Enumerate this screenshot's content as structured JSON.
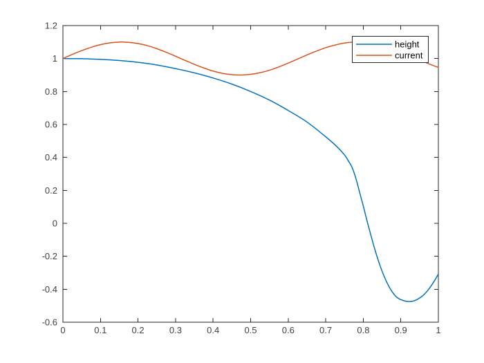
{
  "figure": {
    "background": "#ffffff",
    "axis_color": "#262626",
    "tick_label_color": "#404040",
    "legend_text_color": "#000000"
  },
  "chart_data": {
    "type": "line",
    "title": "",
    "xlabel": "",
    "ylabel": "",
    "xlim": [
      0,
      1
    ],
    "ylim": [
      -0.6,
      1.2
    ],
    "grid": false,
    "box": true,
    "xticks": [
      0,
      0.1,
      0.2,
      0.3,
      0.4,
      0.5,
      0.6,
      0.7,
      0.8,
      0.9,
      1
    ],
    "xtick_labels": [
      "0",
      "0.1",
      "0.2",
      "0.3",
      "0.4",
      "0.5",
      "0.6",
      "0.7",
      "0.8",
      "0.9",
      "1"
    ],
    "yticks": [
      -0.6,
      -0.4,
      -0.2,
      0,
      0.2,
      0.4,
      0.6,
      0.8,
      1,
      1.2
    ],
    "ytick_labels": [
      "-0.6",
      "-0.4",
      "-0.2",
      "0",
      "0.2",
      "0.4",
      "0.6",
      "0.8",
      "1",
      "1.2"
    ],
    "legend": {
      "position": "northeast",
      "background": "#ffffff",
      "border_color": "#262626",
      "entries": [
        "height",
        "current"
      ]
    },
    "series": [
      {
        "name": "height",
        "color": "#0072BD",
        "points": [
          [
            0,
            1.0
          ],
          [
            0.05,
            0.999
          ],
          [
            0.1,
            0.995
          ],
          [
            0.15,
            0.988
          ],
          [
            0.2,
            0.977
          ],
          [
            0.25,
            0.961
          ],
          [
            0.3,
            0.939
          ],
          [
            0.35,
            0.913
          ],
          [
            0.4,
            0.882
          ],
          [
            0.45,
            0.845
          ],
          [
            0.5,
            0.8
          ],
          [
            0.55,
            0.748
          ],
          [
            0.6,
            0.685
          ],
          [
            0.65,
            0.615
          ],
          [
            0.7,
            0.525
          ],
          [
            0.73,
            0.465
          ],
          [
            0.75,
            0.415
          ],
          [
            0.76,
            0.38
          ],
          [
            0.77,
            0.34
          ],
          [
            0.78,
            0.275
          ],
          [
            0.79,
            0.19
          ],
          [
            0.8,
            0.105
          ],
          [
            0.81,
            0.015
          ],
          [
            0.82,
            -0.07
          ],
          [
            0.83,
            -0.152
          ],
          [
            0.84,
            -0.225
          ],
          [
            0.85,
            -0.29
          ],
          [
            0.86,
            -0.345
          ],
          [
            0.87,
            -0.39
          ],
          [
            0.88,
            -0.425
          ],
          [
            0.89,
            -0.45
          ],
          [
            0.9,
            -0.463
          ],
          [
            0.91,
            -0.471
          ],
          [
            0.92,
            -0.474
          ],
          [
            0.93,
            -0.473
          ],
          [
            0.94,
            -0.466
          ],
          [
            0.95,
            -0.453
          ],
          [
            0.96,
            -0.436
          ],
          [
            0.97,
            -0.412
          ],
          [
            0.98,
            -0.382
          ],
          [
            0.99,
            -0.347
          ],
          [
            1.0,
            -0.308
          ]
        ]
      },
      {
        "name": "current",
        "color": "#D95319",
        "points": [
          [
            0,
            1.0
          ],
          [
            0.025,
            1.025
          ],
          [
            0.05,
            1.048
          ],
          [
            0.075,
            1.068
          ],
          [
            0.1,
            1.084
          ],
          [
            0.125,
            1.095
          ],
          [
            0.15,
            1.1
          ],
          [
            0.175,
            1.098
          ],
          [
            0.2,
            1.091
          ],
          [
            0.225,
            1.078
          ],
          [
            0.25,
            1.06
          ],
          [
            0.275,
            1.038
          ],
          [
            0.3,
            1.014
          ],
          [
            0.325,
            0.989
          ],
          [
            0.35,
            0.965
          ],
          [
            0.375,
            0.943
          ],
          [
            0.4,
            0.924
          ],
          [
            0.425,
            0.91
          ],
          [
            0.45,
            0.902
          ],
          [
            0.475,
            0.9
          ],
          [
            0.5,
            0.904
          ],
          [
            0.525,
            0.914
          ],
          [
            0.55,
            0.929
          ],
          [
            0.575,
            0.949
          ],
          [
            0.6,
            0.972
          ],
          [
            0.625,
            0.997
          ],
          [
            0.65,
            1.022
          ],
          [
            0.675,
            1.045
          ],
          [
            0.7,
            1.066
          ],
          [
            0.725,
            1.082
          ],
          [
            0.75,
            1.094
          ],
          [
            0.775,
            1.1
          ],
          [
            0.8,
            1.099
          ],
          [
            0.825,
            1.092
          ],
          [
            0.85,
            1.08
          ],
          [
            0.875,
            1.062
          ],
          [
            0.9,
            1.041
          ],
          [
            0.925,
            1.017
          ],
          [
            0.95,
            0.993
          ],
          [
            0.975,
            0.968
          ],
          [
            1.0,
            0.946
          ]
        ]
      }
    ]
  }
}
